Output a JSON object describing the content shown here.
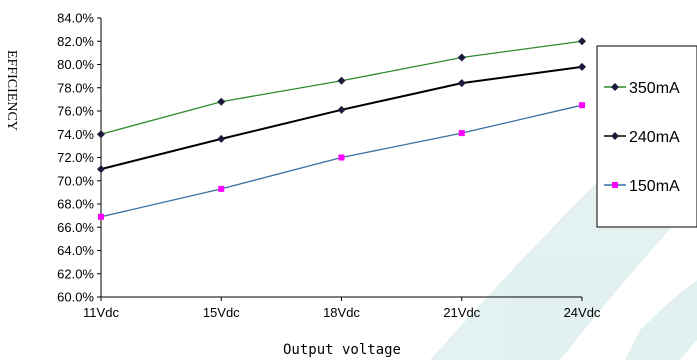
{
  "chart_data": {
    "type": "line",
    "xlabel": "Output voltage",
    "ylabel": "EFFICIENCY",
    "categories": [
      "11Vdc",
      "15Vdc",
      "18Vdc",
      "21Vdc",
      "24Vdc"
    ],
    "y_ticks": [
      "60.0%",
      "62.0%",
      "64.0%",
      "66.0%",
      "68.0%",
      "70.0%",
      "72.0%",
      "74.0%",
      "76.0%",
      "78.0%",
      "80.0%",
      "82.0%",
      "84.0%"
    ],
    "ylim": [
      60,
      84
    ],
    "y_unit": "%",
    "grid": false,
    "legend_position": "right",
    "series": [
      {
        "name": "350mA",
        "values": [
          74.0,
          76.8,
          78.6,
          80.6,
          82.0
        ],
        "line_color": "#2e8b2e",
        "marker_color": "#1a1a3a",
        "marker": "diamond"
      },
      {
        "name": "240mA",
        "values": [
          71.0,
          73.6,
          76.1,
          78.4,
          79.8
        ],
        "line_color": "#000000",
        "marker_color": "#1a1a3a",
        "marker": "diamond"
      },
      {
        "name": "150mA",
        "values": [
          66.9,
          69.3,
          72.0,
          74.1,
          76.5
        ],
        "line_color": "#3a6ea5",
        "marker_color": "#ff00ff",
        "marker": "square"
      }
    ]
  },
  "watermark_color": "#2a9d8f"
}
